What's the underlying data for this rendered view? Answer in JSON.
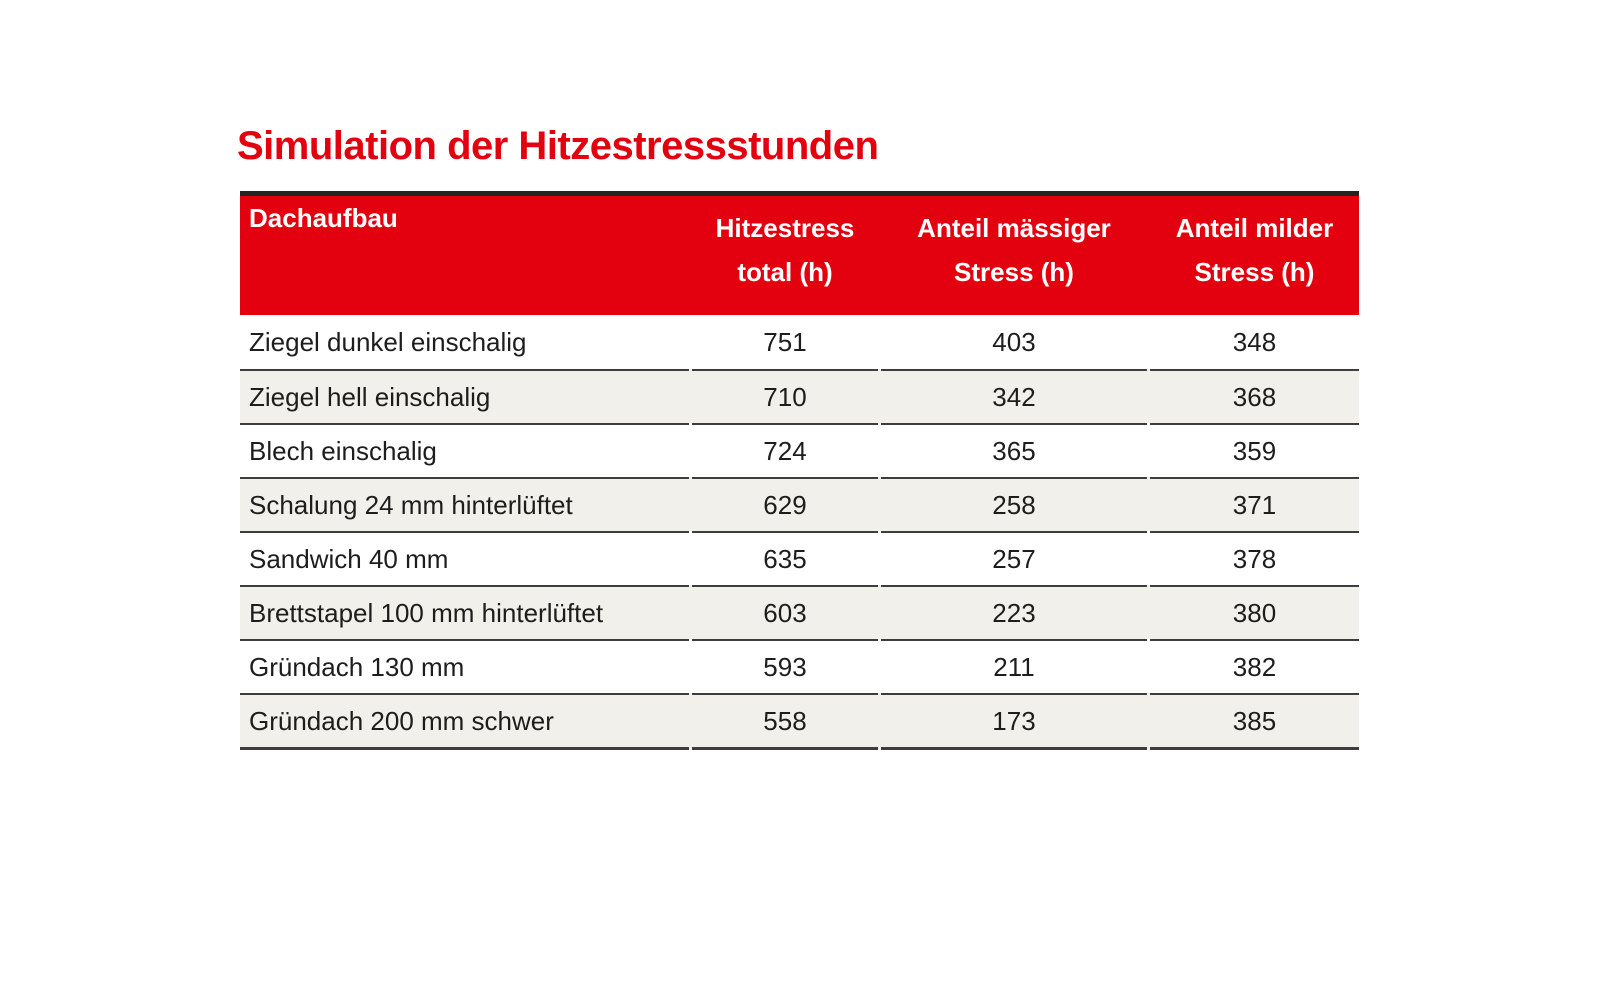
{
  "title": "Simulation der Hitzestressstunden",
  "colors": {
    "accent_red": "#e3000f",
    "header_text": "#ffffff",
    "row_alt_bg": "#f1f0eb",
    "rule_top": "#262420",
    "rule_gray": "#3d3d3c",
    "body_text": "#1d1d1b"
  },
  "table": {
    "header": {
      "col1": "Dachaufbau",
      "col2_line1": "Hitzestress",
      "col2_line2": "total (h)",
      "col3_line1": "Anteil mässiger",
      "col3_line2": "Stress (h)",
      "col4_line1": "Anteil milder",
      "col4_line2": "Stress (h)"
    },
    "rows": [
      {
        "dachaufbau": "Ziegel dunkel einschalig",
        "total": "751",
        "maessig": "403",
        "mild": "348"
      },
      {
        "dachaufbau": "Ziegel hell einschalig",
        "total": "710",
        "maessig": "342",
        "mild": "368"
      },
      {
        "dachaufbau": "Blech einschalig",
        "total": "724",
        "maessig": "365",
        "mild": "359"
      },
      {
        "dachaufbau": "Schalung 24 mm hinterlüftet",
        "total": "629",
        "maessig": "258",
        "mild": "371"
      },
      {
        "dachaufbau": "Sandwich 40 mm",
        "total": "635",
        "maessig": "257",
        "mild": "378"
      },
      {
        "dachaufbau": "Brettstapel 100 mm hinterlüftet",
        "total": "603",
        "maessig": "223",
        "mild": "380"
      },
      {
        "dachaufbau": "Gründach 130 mm",
        "total": "593",
        "maessig": "211",
        "mild": "382"
      },
      {
        "dachaufbau": "Gründach 200 mm schwer",
        "total": "558",
        "maessig": "173",
        "mild": "385"
      }
    ]
  },
  "chart_data": {
    "type": "table",
    "title": "Simulation der Hitzestressstunden",
    "columns": [
      "Dachaufbau",
      "Hitzestress total (h)",
      "Anteil mässiger Stress (h)",
      "Anteil milder Stress (h)"
    ],
    "rows": [
      [
        "Ziegel dunkel einschalig",
        751,
        403,
        348
      ],
      [
        "Ziegel hell einschalig",
        710,
        342,
        368
      ],
      [
        "Blech einschalig",
        724,
        365,
        359
      ],
      [
        "Schalung 24 mm hinterlüftet",
        629,
        258,
        371
      ],
      [
        "Sandwich 40 mm",
        635,
        257,
        378
      ],
      [
        "Brettstapel 100 mm hinterlüftet",
        603,
        223,
        380
      ],
      [
        "Gründach 130 mm",
        593,
        211,
        382
      ],
      [
        "Gründach 200 mm schwer",
        558,
        173,
        385
      ]
    ]
  }
}
